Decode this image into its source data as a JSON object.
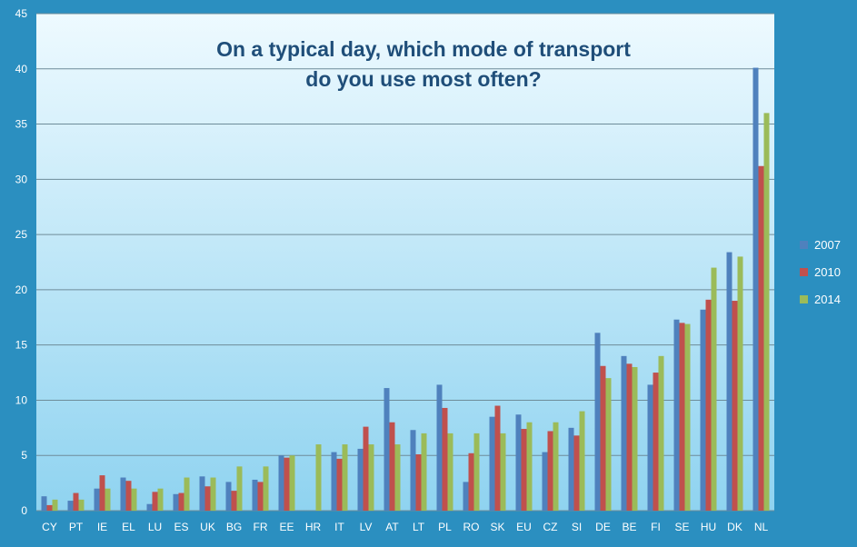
{
  "chart_data": {
    "type": "bar",
    "title": "On a typical day, which mode of transport do you use most often?",
    "title_lines": [
      "On a typical day, which mode of transport",
      "do you use most often?"
    ],
    "xlabel": "",
    "ylabel": "",
    "ylim": [
      0,
      45
    ],
    "yticks": [
      0,
      5,
      10,
      15,
      20,
      25,
      30,
      35,
      40,
      45
    ],
    "grid": true,
    "legend_position": "right",
    "categories": [
      "CY",
      "PT",
      "IE",
      "EL",
      "LU",
      "ES",
      "UK",
      "BG",
      "FR",
      "EE",
      "HR",
      "IT",
      "LV",
      "AT",
      "LT",
      "PL",
      "RO",
      "SK",
      "EU",
      "CZ",
      "SI",
      "DE",
      "BE",
      "FI",
      "SE",
      "HU",
      "DK",
      "NL"
    ],
    "series": [
      {
        "name": "2007",
        "color": "#4f81bd",
        "values": [
          1.3,
          0.9,
          2.0,
          3.0,
          0.6,
          1.5,
          3.1,
          2.6,
          2.8,
          5.0,
          null,
          5.3,
          5.6,
          11.1,
          7.3,
          11.4,
          2.6,
          8.5,
          8.7,
          5.3,
          7.5,
          16.1,
          14.0,
          11.4,
          17.3,
          18.2,
          23.4,
          40.1
        ]
      },
      {
        "name": "2010",
        "color": "#c0504d",
        "values": [
          0.5,
          1.6,
          3.2,
          2.7,
          1.7,
          1.6,
          2.2,
          1.8,
          2.6,
          4.8,
          null,
          4.7,
          7.6,
          8.0,
          5.1,
          9.3,
          5.2,
          9.5,
          7.4,
          7.2,
          6.8,
          13.1,
          13.3,
          12.5,
          17.0,
          19.1,
          19.0,
          31.2
        ]
      },
      {
        "name": "2014",
        "color": "#9bbb59",
        "values": [
          1.0,
          1.0,
          2.0,
          2.0,
          2.0,
          3.0,
          3.0,
          4.0,
          4.0,
          5.0,
          6.0,
          6.0,
          6.0,
          6.0,
          7.0,
          7.0,
          7.0,
          7.0,
          8.0,
          8.0,
          9.0,
          12.0,
          13.0,
          14.0,
          16.9,
          22.0,
          23.0,
          36.0
        ]
      }
    ]
  }
}
